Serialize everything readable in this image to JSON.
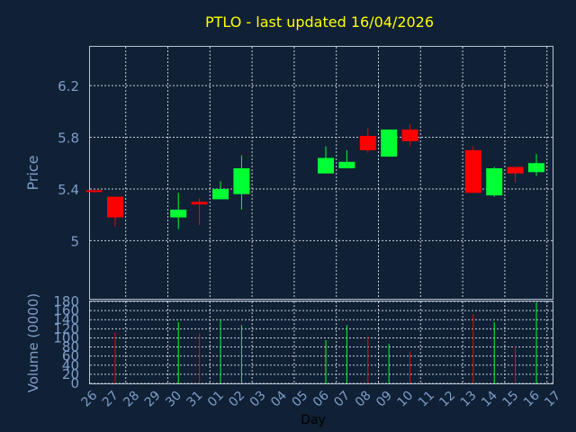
{
  "chart_data": [
    {
      "type": "candlestick",
      "title": "PTLO - last updated 16/04/2026",
      "ylabel": "Price",
      "ylim": [
        4.55,
        6.5
      ],
      "yticks": [
        5,
        5.4,
        5.8,
        6.2
      ],
      "ytick_labels": [
        "5",
        "5.4",
        "5.8",
        "6.2"
      ],
      "grid": true,
      "up_color": "#00ff33",
      "down_color": "#ff0000",
      "candles": [
        {
          "x": 0,
          "open": 5.39,
          "high": 5.39,
          "low": 5.37,
          "close": 5.38
        },
        {
          "x": 1,
          "open": 5.34,
          "high": 5.34,
          "low": 5.11,
          "close": 5.18
        },
        {
          "x": 4,
          "open": 5.18,
          "high": 5.37,
          "low": 5.09,
          "close": 5.24
        },
        {
          "x": 5,
          "open": 5.3,
          "high": 5.33,
          "low": 5.12,
          "close": 5.28
        },
        {
          "x": 6,
          "open": 5.32,
          "high": 5.46,
          "low": 5.32,
          "close": 5.4
        },
        {
          "x": 7,
          "open": 5.36,
          "high": 5.66,
          "low": 5.24,
          "close": 5.56
        },
        {
          "x": 11,
          "open": 5.52,
          "high": 5.73,
          "low": 5.52,
          "close": 5.64
        },
        {
          "x": 12,
          "open": 5.56,
          "high": 5.7,
          "low": 5.56,
          "close": 5.61
        },
        {
          "x": 13,
          "open": 5.81,
          "high": 5.87,
          "low": 5.68,
          "close": 5.7
        },
        {
          "x": 14,
          "open": 5.65,
          "high": 5.86,
          "low": 5.65,
          "close": 5.86
        },
        {
          "x": 15,
          "open": 5.86,
          "high": 5.9,
          "low": 5.73,
          "close": 5.77
        },
        {
          "x": 18,
          "open": 5.7,
          "high": 5.73,
          "low": 5.37,
          "close": 5.37
        },
        {
          "x": 19,
          "open": 5.35,
          "high": 5.57,
          "low": 5.34,
          "close": 5.56
        },
        {
          "x": 20,
          "open": 5.57,
          "high": 5.57,
          "low": 5.45,
          "close": 5.52
        },
        {
          "x": 21,
          "open": 5.53,
          "high": 5.67,
          "low": 5.5,
          "close": 5.6
        }
      ]
    },
    {
      "type": "bar",
      "ylabel": "Volume (0000)",
      "xlabel": "Day",
      "ylim": [
        0,
        180
      ],
      "yticks": [
        0,
        20,
        40,
        60,
        80,
        100,
        120,
        140,
        160,
        180
      ],
      "ytick_labels": [
        "0",
        "20",
        "40",
        "60",
        "80",
        "100",
        "120",
        "140",
        "160",
        "180"
      ],
      "categories": [
        "26",
        "27",
        "28",
        "29",
        "30",
        "31",
        "01",
        "02",
        "03",
        "04",
        "05",
        "06",
        "07",
        "08",
        "09",
        "10",
        "11",
        "12",
        "13",
        "14",
        "15",
        "16",
        "17"
      ],
      "bars": [
        {
          "x": 1,
          "value": 112,
          "color": "#ff0000"
        },
        {
          "x": 4,
          "value": 135,
          "color": "#00ff33"
        },
        {
          "x": 5,
          "value": 110,
          "color": "#ff0000"
        },
        {
          "x": 6,
          "value": 140,
          "color": "#00ff33"
        },
        {
          "x": 7,
          "value": 128,
          "color": "#00ff33"
        },
        {
          "x": 11,
          "value": 95,
          "color": "#00ff33"
        },
        {
          "x": 12,
          "value": 128,
          "color": "#00ff33"
        },
        {
          "x": 13,
          "value": 103,
          "color": "#ff0000"
        },
        {
          "x": 14,
          "value": 87,
          "color": "#00ff33"
        },
        {
          "x": 15,
          "value": 70,
          "color": "#ff0000"
        },
        {
          "x": 18,
          "value": 152,
          "color": "#ff0000"
        },
        {
          "x": 19,
          "value": 135,
          "color": "#00ff33"
        },
        {
          "x": 20,
          "value": 82,
          "color": "#ff0000"
        },
        {
          "x": 21,
          "value": 178,
          "color": "#00ff33"
        }
      ]
    }
  ]
}
